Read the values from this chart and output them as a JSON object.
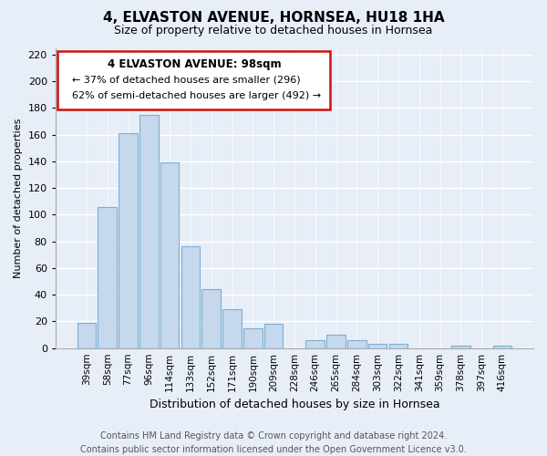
{
  "title": "4, ELVASTON AVENUE, HORNSEA, HU18 1HA",
  "subtitle": "Size of property relative to detached houses in Hornsea",
  "xlabel": "Distribution of detached houses by size in Hornsea",
  "ylabel": "Number of detached properties",
  "categories": [
    "39sqm",
    "58sqm",
    "77sqm",
    "96sqm",
    "114sqm",
    "133sqm",
    "152sqm",
    "171sqm",
    "190sqm",
    "209sqm",
    "228sqm",
    "246sqm",
    "265sqm",
    "284sqm",
    "303sqm",
    "322sqm",
    "341sqm",
    "359sqm",
    "378sqm",
    "397sqm",
    "416sqm"
  ],
  "values": [
    19,
    106,
    161,
    175,
    139,
    76,
    44,
    29,
    15,
    18,
    0,
    6,
    10,
    6,
    3,
    3,
    0,
    0,
    2,
    0,
    2
  ],
  "bar_color": "#c5d8ed",
  "bar_edge_color": "#7bafd4",
  "ylim": [
    0,
    225
  ],
  "yticks": [
    0,
    20,
    40,
    60,
    80,
    100,
    120,
    140,
    160,
    180,
    200,
    220
  ],
  "annotation_title": "4 ELVASTON AVENUE: 98sqm",
  "annotation_line1": "← 37% of detached houses are smaller (296)",
  "annotation_line2": "62% of semi-detached houses are larger (492) →",
  "footer1": "Contains HM Land Registry data © Crown copyright and database right 2024.",
  "footer2": "Contains public sector information licensed under the Open Government Licence v3.0.",
  "bg_color": "#e8eef8",
  "grid_color": "#ffffff",
  "title_fontsize": 11,
  "subtitle_fontsize": 9,
  "ylabel_fontsize": 8,
  "xlabel_fontsize": 9,
  "tick_fontsize": 8,
  "xtick_fontsize": 7.5,
  "footer_fontsize": 7,
  "ann_fontsize": 8,
  "ann_title_fontsize": 8.5
}
